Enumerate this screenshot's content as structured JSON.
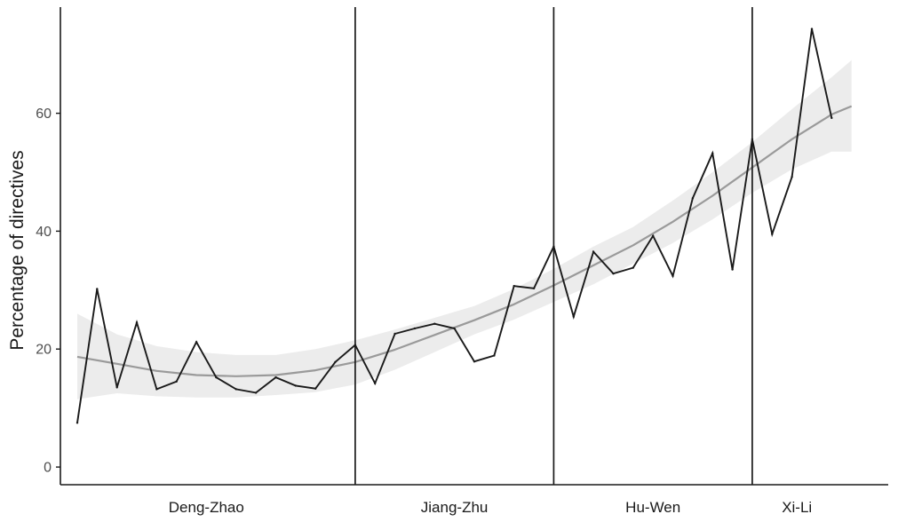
{
  "chart_data": {
    "type": "line",
    "title": "",
    "xlabel": "",
    "ylabel": "Percentage of directives",
    "ylim": [
      -3,
      78
    ],
    "yticks": [
      0,
      20,
      40,
      60
    ],
    "grid": false,
    "legend": "none",
    "index_range": [
      0.15,
      41.85
    ],
    "eras": [
      {
        "label": "Deng-Zhao",
        "start": 0,
        "end": 15
      },
      {
        "label": "Jiang-Zhu",
        "start": 15,
        "end": 25
      },
      {
        "label": "Hu-Wen",
        "start": 25,
        "end": 35
      },
      {
        "label": "Xi-Li",
        "start": 35,
        "end": 39.5
      }
    ],
    "boundaries": [
      15,
      25,
      35
    ],
    "series": [
      {
        "role": "observed",
        "color": "#1a1a1a",
        "x": [
          1,
          2,
          3,
          4,
          5,
          6,
          7,
          8,
          9,
          10,
          11,
          12,
          13,
          14,
          15,
          16,
          17,
          18,
          19,
          20,
          21,
          22,
          23,
          24,
          25,
          26,
          27,
          28,
          29,
          30,
          31,
          32,
          33,
          34,
          35,
          36,
          37,
          38,
          39
        ],
        "values": [
          7.5,
          30.2,
          13.5,
          24.5,
          13.2,
          14.5,
          21.2,
          15.2,
          13.2,
          12.6,
          15.2,
          13.8,
          13.3,
          17.8,
          20.7,
          14.2,
          22.6,
          23.5,
          24.3,
          23.5,
          17.9,
          18.9,
          30.7,
          30.3,
          37.4,
          25.5,
          36.5,
          32.8,
          33.8,
          39.2,
          32.4,
          45.6,
          53.2,
          33.5,
          55.6,
          39.5,
          49.2,
          74.3,
          59.2
        ]
      },
      {
        "role": "fit",
        "color": "#9a9a9a",
        "x": [
          1,
          3,
          5,
          7,
          9,
          11,
          13,
          15,
          17,
          19,
          21,
          23,
          25,
          27,
          29,
          31,
          33,
          35,
          37,
          39,
          40
        ],
        "values": [
          18.7,
          17.5,
          16.3,
          15.6,
          15.4,
          15.6,
          16.4,
          17.8,
          19.9,
          22.4,
          24.9,
          27.6,
          30.8,
          34.2,
          37.6,
          41.6,
          46.0,
          50.8,
          55.6,
          59.8,
          61.2
        ]
      }
    ],
    "confidence_band": {
      "color": "#ececec",
      "x": [
        1,
        3,
        5,
        7,
        9,
        11,
        13,
        15,
        17,
        19,
        21,
        23,
        25,
        27,
        29,
        31,
        33,
        35,
        37,
        39,
        40
      ],
      "lower": [
        11.5,
        12.5,
        12.0,
        11.8,
        11.8,
        12.2,
        12.7,
        14.0,
        16.5,
        19.5,
        22.5,
        25.0,
        28.0,
        31.0,
        34.5,
        38.0,
        42.0,
        46.5,
        50.5,
        53.5,
        53.5
      ],
      "upper": [
        26.0,
        22.5,
        20.5,
        19.5,
        19.0,
        19.0,
        20.0,
        21.5,
        23.3,
        25.3,
        27.3,
        30.2,
        33.6,
        37.4,
        40.7,
        45.2,
        50.0,
        55.1,
        60.7,
        66.1,
        69.0
      ]
    }
  }
}
